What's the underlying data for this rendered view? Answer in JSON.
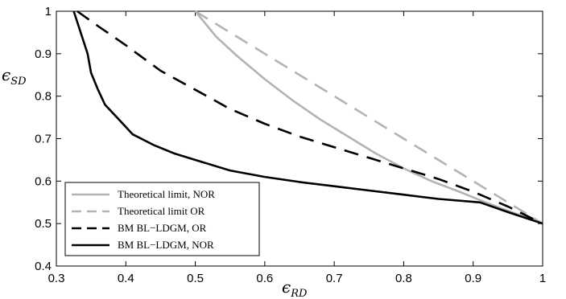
{
  "chart_data": {
    "type": "line",
    "title": "",
    "xlabel": {
      "main": "ϵ",
      "sub": "RD"
    },
    "ylabel": {
      "main": "ϵ",
      "sub": "SD"
    },
    "xlim": [
      0.3,
      1
    ],
    "ylim": [
      0.4,
      1
    ],
    "xticks": [
      "0.3",
      "0.4",
      "0.5",
      "0.6",
      "0.7",
      "0.8",
      "0.9",
      "1"
    ],
    "yticks": [
      "0.4",
      "0.5",
      "0.6",
      "0.7",
      "0.8",
      "0.9",
      "1"
    ],
    "grid": false,
    "legend_position": "bottom-left",
    "series": [
      {
        "name": "Theoretical limit, NOR",
        "color": "#b3b3b3",
        "dash": "solid",
        "x": [
          0.5,
          0.53,
          0.56,
          0.6,
          0.64,
          0.68,
          0.72,
          0.76,
          0.8,
          0.84,
          0.88,
          0.91,
          0.95,
          1.0
        ],
        "y": [
          1.0,
          0.94,
          0.895,
          0.84,
          0.79,
          0.745,
          0.705,
          0.665,
          0.63,
          0.6,
          0.575,
          0.555,
          0.53,
          0.5
        ]
      },
      {
        "name": "Theoretical limit OR",
        "color": "#b3b3b3",
        "dash": "dashed",
        "x": [
          0.5,
          1.0
        ],
        "y": [
          1.0,
          0.5
        ]
      },
      {
        "name": "BM BL−LDGM, OR",
        "color": "#000000",
        "dash": "dashed",
        "x": [
          0.33,
          0.36,
          0.4,
          0.45,
          0.5,
          0.55,
          0.6,
          0.65,
          0.7,
          0.75,
          0.8,
          0.85,
          0.9,
          0.95,
          1.0
        ],
        "y": [
          1.0,
          0.965,
          0.92,
          0.86,
          0.815,
          0.77,
          0.735,
          0.705,
          0.68,
          0.655,
          0.63,
          0.605,
          0.575,
          0.54,
          0.5
        ]
      },
      {
        "name": "BM BL−LDGM, NOR",
        "color": "#000000",
        "dash": "solid",
        "x": [
          0.325,
          0.345,
          0.35,
          0.36,
          0.37,
          0.39,
          0.41,
          0.44,
          0.47,
          0.51,
          0.55,
          0.6,
          0.65,
          0.7,
          0.75,
          0.8,
          0.85,
          0.91,
          0.95,
          1.0
        ],
        "y": [
          1.0,
          0.9,
          0.855,
          0.815,
          0.78,
          0.745,
          0.71,
          0.685,
          0.665,
          0.645,
          0.625,
          0.61,
          0.598,
          0.588,
          0.578,
          0.568,
          0.558,
          0.55,
          0.527,
          0.5
        ]
      }
    ]
  }
}
